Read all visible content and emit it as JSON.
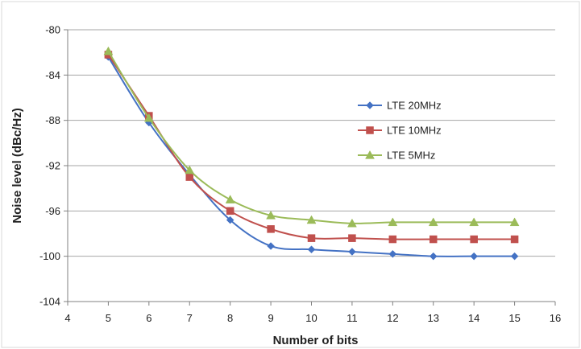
{
  "chart_data": {
    "type": "line",
    "title": "",
    "xlabel": "Number of bits",
    "ylabel": "Noise level (dBc/Hz)",
    "xlim": [
      4,
      16
    ],
    "ylim": [
      -104,
      -80
    ],
    "x_ticks": [
      4,
      5,
      6,
      7,
      8,
      9,
      10,
      11,
      12,
      13,
      14,
      15,
      16
    ],
    "y_ticks": [
      -80,
      -84,
      -88,
      -92,
      -96,
      -100,
      -104
    ],
    "grid": "horizontal",
    "legend_position": "right",
    "x": [
      5,
      6,
      7,
      8,
      9,
      10,
      11,
      12,
      13,
      14,
      15
    ],
    "series": [
      {
        "name": "LTE 20MHz",
        "color": "#4472C4",
        "marker": "diamond",
        "values": [
          -82.4,
          -88.2,
          -92.8,
          -96.8,
          -99.1,
          -99.4,
          -99.6,
          -99.8,
          -100.0,
          -100.0,
          -100.0
        ]
      },
      {
        "name": "LTE 10MHz",
        "color": "#C0504D",
        "marker": "square",
        "values": [
          -82.2,
          -87.6,
          -93.0,
          -96.0,
          -97.6,
          -98.4,
          -98.4,
          -98.5,
          -98.5,
          -98.5,
          -98.5
        ]
      },
      {
        "name": "LTE 5MHz",
        "color": "#9BBB59",
        "marker": "triangle",
        "values": [
          -81.9,
          -87.8,
          -92.4,
          -95.0,
          -96.4,
          -96.8,
          -97.1,
          -97.0,
          -97.0,
          -97.0,
          -97.0
        ]
      }
    ]
  },
  "colors": {
    "grid": "#A6A6A6",
    "axis": "#808080",
    "border": "#D9D9D9"
  }
}
